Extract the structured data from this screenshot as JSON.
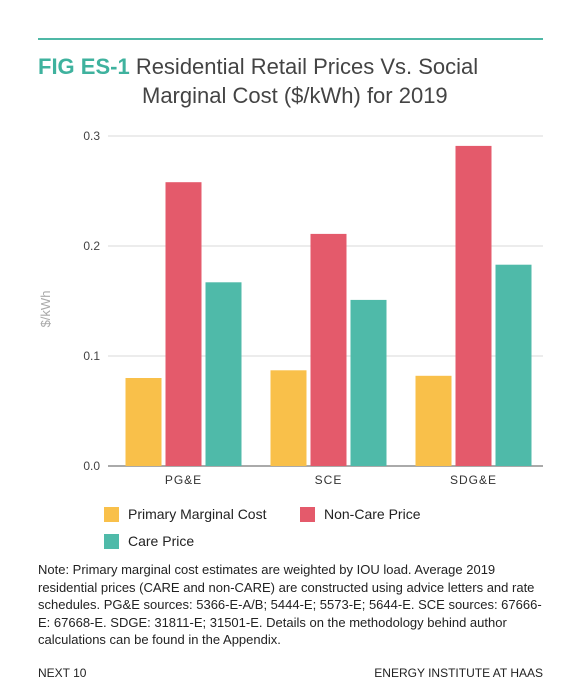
{
  "header": {
    "fig_label": "FIG ES-1",
    "title_line1": "Residential Retail Prices Vs. Social",
    "title_line2": "Marginal Cost ($/kWh) for 2019"
  },
  "chart_data": {
    "type": "bar",
    "title": "Residential Retail Prices Vs. Social Marginal Cost ($/kWh) for 2019",
    "categories": [
      "PG&E",
      "SCE",
      "SDG&E"
    ],
    "series": [
      {
        "name": "Primary Marginal Cost",
        "color": "#f9c04a",
        "values": [
          0.08,
          0.087,
          0.082
        ]
      },
      {
        "name": "Non-Care Price",
        "color": "#e45a6b",
        "values": [
          0.258,
          0.211,
          0.291
        ]
      },
      {
        "name": "Care Price",
        "color": "#4fbaa9",
        "values": [
          0.167,
          0.151,
          0.183
        ]
      }
    ],
    "ylabel": "$/kWh",
    "ylim": [
      0,
      0.3
    ],
    "yticks": [
      "0.0",
      "0.1",
      "0.2",
      "0.3"
    ],
    "grid": true,
    "legend_position": "bottom"
  },
  "note": "Note: Primary marginal cost estimates are weighted by IOU load.  Average 2019 residential prices (CARE and non-CARE) are constructed using advice letters and rate schedules. PG&E sources: 5366-E-A/B; 5444-E; 5573-E; 5644-E. SCE sources: 67666-E: 67668-E. SDGE: 31811-E; 31501-E. Details on the methodology behind author calculations can be found in the Appendix.",
  "footer": {
    "left": "NEXT 10",
    "right": "ENERGY INSTITUTE AT HAAS"
  }
}
